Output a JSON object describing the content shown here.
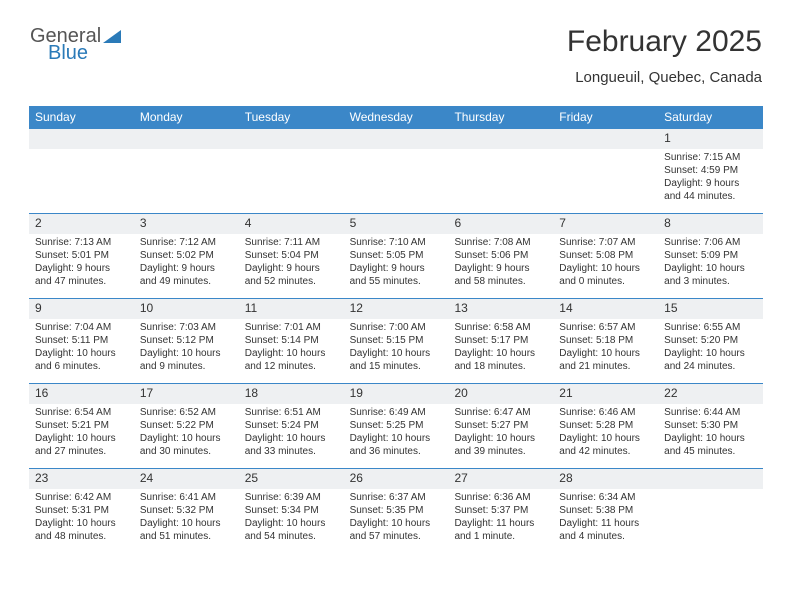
{
  "logo": {
    "text1": "General",
    "text2": "Blue"
  },
  "title": "February 2025",
  "location": "Longueuil, Quebec, Canada",
  "colors": {
    "header_bg": "#3b87c8",
    "header_text": "#ffffff",
    "daynum_bg": "#eef0f2",
    "row_border": "#3b87c8",
    "text": "#333333",
    "logo_gray": "#555555",
    "logo_blue": "#2a7ab8"
  },
  "day_headers": [
    "Sunday",
    "Monday",
    "Tuesday",
    "Wednesday",
    "Thursday",
    "Friday",
    "Saturday"
  ],
  "weeks": [
    [
      {
        "n": "",
        "sr": "",
        "ss": "",
        "d1": "",
        "d2": ""
      },
      {
        "n": "",
        "sr": "",
        "ss": "",
        "d1": "",
        "d2": ""
      },
      {
        "n": "",
        "sr": "",
        "ss": "",
        "d1": "",
        "d2": ""
      },
      {
        "n": "",
        "sr": "",
        "ss": "",
        "d1": "",
        "d2": ""
      },
      {
        "n": "",
        "sr": "",
        "ss": "",
        "d1": "",
        "d2": ""
      },
      {
        "n": "",
        "sr": "",
        "ss": "",
        "d1": "",
        "d2": ""
      },
      {
        "n": "1",
        "sr": "Sunrise: 7:15 AM",
        "ss": "Sunset: 4:59 PM",
        "d1": "Daylight: 9 hours",
        "d2": "and 44 minutes."
      }
    ],
    [
      {
        "n": "2",
        "sr": "Sunrise: 7:13 AM",
        "ss": "Sunset: 5:01 PM",
        "d1": "Daylight: 9 hours",
        "d2": "and 47 minutes."
      },
      {
        "n": "3",
        "sr": "Sunrise: 7:12 AM",
        "ss": "Sunset: 5:02 PM",
        "d1": "Daylight: 9 hours",
        "d2": "and 49 minutes."
      },
      {
        "n": "4",
        "sr": "Sunrise: 7:11 AM",
        "ss": "Sunset: 5:04 PM",
        "d1": "Daylight: 9 hours",
        "d2": "and 52 minutes."
      },
      {
        "n": "5",
        "sr": "Sunrise: 7:10 AM",
        "ss": "Sunset: 5:05 PM",
        "d1": "Daylight: 9 hours",
        "d2": "and 55 minutes."
      },
      {
        "n": "6",
        "sr": "Sunrise: 7:08 AM",
        "ss": "Sunset: 5:06 PM",
        "d1": "Daylight: 9 hours",
        "d2": "and 58 minutes."
      },
      {
        "n": "7",
        "sr": "Sunrise: 7:07 AM",
        "ss": "Sunset: 5:08 PM",
        "d1": "Daylight: 10 hours",
        "d2": "and 0 minutes."
      },
      {
        "n": "8",
        "sr": "Sunrise: 7:06 AM",
        "ss": "Sunset: 5:09 PM",
        "d1": "Daylight: 10 hours",
        "d2": "and 3 minutes."
      }
    ],
    [
      {
        "n": "9",
        "sr": "Sunrise: 7:04 AM",
        "ss": "Sunset: 5:11 PM",
        "d1": "Daylight: 10 hours",
        "d2": "and 6 minutes."
      },
      {
        "n": "10",
        "sr": "Sunrise: 7:03 AM",
        "ss": "Sunset: 5:12 PM",
        "d1": "Daylight: 10 hours",
        "d2": "and 9 minutes."
      },
      {
        "n": "11",
        "sr": "Sunrise: 7:01 AM",
        "ss": "Sunset: 5:14 PM",
        "d1": "Daylight: 10 hours",
        "d2": "and 12 minutes."
      },
      {
        "n": "12",
        "sr": "Sunrise: 7:00 AM",
        "ss": "Sunset: 5:15 PM",
        "d1": "Daylight: 10 hours",
        "d2": "and 15 minutes."
      },
      {
        "n": "13",
        "sr": "Sunrise: 6:58 AM",
        "ss": "Sunset: 5:17 PM",
        "d1": "Daylight: 10 hours",
        "d2": "and 18 minutes."
      },
      {
        "n": "14",
        "sr": "Sunrise: 6:57 AM",
        "ss": "Sunset: 5:18 PM",
        "d1": "Daylight: 10 hours",
        "d2": "and 21 minutes."
      },
      {
        "n": "15",
        "sr": "Sunrise: 6:55 AM",
        "ss": "Sunset: 5:20 PM",
        "d1": "Daylight: 10 hours",
        "d2": "and 24 minutes."
      }
    ],
    [
      {
        "n": "16",
        "sr": "Sunrise: 6:54 AM",
        "ss": "Sunset: 5:21 PM",
        "d1": "Daylight: 10 hours",
        "d2": "and 27 minutes."
      },
      {
        "n": "17",
        "sr": "Sunrise: 6:52 AM",
        "ss": "Sunset: 5:22 PM",
        "d1": "Daylight: 10 hours",
        "d2": "and 30 minutes."
      },
      {
        "n": "18",
        "sr": "Sunrise: 6:51 AM",
        "ss": "Sunset: 5:24 PM",
        "d1": "Daylight: 10 hours",
        "d2": "and 33 minutes."
      },
      {
        "n": "19",
        "sr": "Sunrise: 6:49 AM",
        "ss": "Sunset: 5:25 PM",
        "d1": "Daylight: 10 hours",
        "d2": "and 36 minutes."
      },
      {
        "n": "20",
        "sr": "Sunrise: 6:47 AM",
        "ss": "Sunset: 5:27 PM",
        "d1": "Daylight: 10 hours",
        "d2": "and 39 minutes."
      },
      {
        "n": "21",
        "sr": "Sunrise: 6:46 AM",
        "ss": "Sunset: 5:28 PM",
        "d1": "Daylight: 10 hours",
        "d2": "and 42 minutes."
      },
      {
        "n": "22",
        "sr": "Sunrise: 6:44 AM",
        "ss": "Sunset: 5:30 PM",
        "d1": "Daylight: 10 hours",
        "d2": "and 45 minutes."
      }
    ],
    [
      {
        "n": "23",
        "sr": "Sunrise: 6:42 AM",
        "ss": "Sunset: 5:31 PM",
        "d1": "Daylight: 10 hours",
        "d2": "and 48 minutes."
      },
      {
        "n": "24",
        "sr": "Sunrise: 6:41 AM",
        "ss": "Sunset: 5:32 PM",
        "d1": "Daylight: 10 hours",
        "d2": "and 51 minutes."
      },
      {
        "n": "25",
        "sr": "Sunrise: 6:39 AM",
        "ss": "Sunset: 5:34 PM",
        "d1": "Daylight: 10 hours",
        "d2": "and 54 minutes."
      },
      {
        "n": "26",
        "sr": "Sunrise: 6:37 AM",
        "ss": "Sunset: 5:35 PM",
        "d1": "Daylight: 10 hours",
        "d2": "and 57 minutes."
      },
      {
        "n": "27",
        "sr": "Sunrise: 6:36 AM",
        "ss": "Sunset: 5:37 PM",
        "d1": "Daylight: 11 hours",
        "d2": "and 1 minute."
      },
      {
        "n": "28",
        "sr": "Sunrise: 6:34 AM",
        "ss": "Sunset: 5:38 PM",
        "d1": "Daylight: 11 hours",
        "d2": "and 4 minutes."
      },
      {
        "n": "",
        "sr": "",
        "ss": "",
        "d1": "",
        "d2": ""
      }
    ]
  ]
}
